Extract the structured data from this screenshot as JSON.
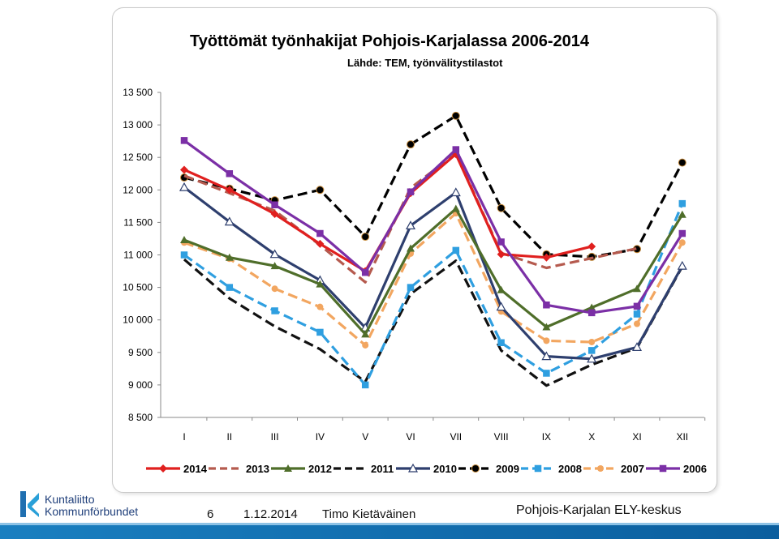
{
  "chart_data": {
    "type": "line",
    "title": "Työttömät työnhakijat Pohjois-Karjalassa 2006-2014",
    "subtitle": "Lähde: TEM, työnvälitystilastot",
    "categories": [
      "I",
      "II",
      "III",
      "IV",
      "V",
      "VI",
      "VII",
      "VIII",
      "IX",
      "X",
      "XI",
      "XII"
    ],
    "ylim": [
      8500,
      13500
    ],
    "yticks": [
      "8 500",
      "9 000",
      "9 500",
      "10 000",
      "10 500",
      "11 000",
      "11 500",
      "12 000",
      "12 500",
      "13 000",
      "13 500"
    ],
    "yticks_values": [
      8500,
      9000,
      9500,
      10000,
      10500,
      11000,
      11500,
      12000,
      12500,
      13000,
      13500
    ],
    "grid": false,
    "legend": "bottom",
    "series": [
      {
        "name": "2014",
        "color": "#e0201f",
        "dash": "solid",
        "marker": "diamond",
        "values": [
          12310,
          12000,
          11630,
          11170,
          10750,
          11950,
          12550,
          11010,
          10960,
          11130,
          null,
          null
        ]
      },
      {
        "name": "2013",
        "color": "#b55a4e",
        "dash": "dash",
        "marker": "none",
        "values": [
          12220,
          11950,
          11680,
          11150,
          10580,
          12030,
          12560,
          11030,
          10800,
          10950,
          11100,
          null
        ]
      },
      {
        "name": "2012",
        "color": "#4f6e2a",
        "dash": "solid",
        "marker": "triangle",
        "values": [
          11230,
          10960,
          10830,
          10550,
          9780,
          11100,
          11710,
          10460,
          9890,
          10190,
          10480,
          11620
        ]
      },
      {
        "name": "2011",
        "color": "#111111",
        "dash": "dash",
        "marker": "none",
        "values": [
          10930,
          10330,
          9900,
          9550,
          9050,
          10400,
          10910,
          9530,
          8990,
          9310,
          9570,
          10820
        ]
      },
      {
        "name": "2010",
        "color": "#2e3f6e",
        "dash": "solid",
        "marker": "open-triangle",
        "values": [
          12040,
          11510,
          11010,
          10610,
          9880,
          11450,
          11960,
          10200,
          9440,
          9400,
          9580,
          10830
        ]
      },
      {
        "name": "2009",
        "color": "#000000",
        "dash": "dash",
        "marker": "circle",
        "values": [
          12190,
          12020,
          11840,
          12000,
          11280,
          12700,
          13140,
          11720,
          11010,
          10970,
          11090,
          12420
        ]
      },
      {
        "name": "2008",
        "color": "#2f9fe0",
        "dash": "dash",
        "marker": "square",
        "values": [
          11000,
          10500,
          10140,
          9810,
          9000,
          10500,
          11070,
          9650,
          9180,
          9530,
          10090,
          11790
        ]
      },
      {
        "name": "2007",
        "color": "#f2a660",
        "dash": "dash",
        "marker": "circle-orange",
        "values": [
          11190,
          10940,
          10480,
          10200,
          9610,
          11020,
          11640,
          10130,
          9680,
          9660,
          9940,
          11190
        ]
      },
      {
        "name": "2006",
        "color": "#7b2fa6",
        "dash": "solid",
        "marker": "square",
        "values": [
          12760,
          12250,
          11770,
          11330,
          10730,
          11970,
          12620,
          11200,
          10230,
          10110,
          10210,
          11330
        ]
      }
    ]
  },
  "footer": {
    "logo_line1": "Kuntaliitto",
    "logo_line2": "Kommunförbundet",
    "page": "6",
    "date": "1.12.2014",
    "author": "Timo Kietäväinen",
    "org": "Pohjois-Karjalan ELY-keskus"
  }
}
